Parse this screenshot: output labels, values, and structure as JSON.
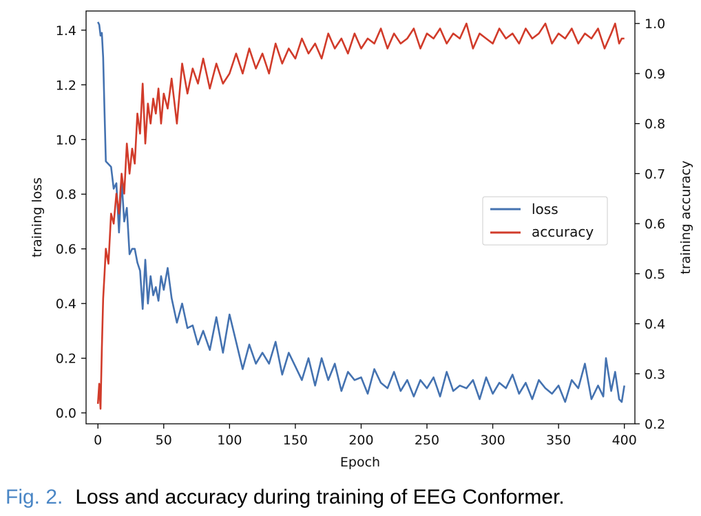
{
  "chart_data": {
    "type": "line",
    "xlabel": "Epoch",
    "ylabel_left": "training loss",
    "ylabel_right": "training accuracy",
    "xlim": [
      -9,
      408
    ],
    "ylim_left": [
      -0.04,
      1.47
    ],
    "ylim_right": [
      0.2,
      1.025
    ],
    "xticks": [
      0,
      50,
      100,
      150,
      200,
      250,
      300,
      350,
      400
    ],
    "yticks_left": [
      0.0,
      0.2,
      0.4,
      0.6,
      0.8,
      1.0,
      1.2,
      1.4
    ],
    "yticks_right": [
      0.2,
      0.3,
      0.4,
      0.5,
      0.6,
      0.7,
      0.8,
      0.9,
      1.0
    ],
    "legend_position": "center-right",
    "series": [
      {
        "name": "loss",
        "axis": "left",
        "color": "#4472b0",
        "x": [
          0,
          1,
          2,
          3,
          4,
          5,
          6,
          8,
          10,
          12,
          14,
          16,
          18,
          20,
          22,
          24,
          26,
          28,
          30,
          32,
          34,
          36,
          38,
          40,
          42,
          44,
          46,
          48,
          50,
          53,
          56,
          60,
          64,
          68,
          72,
          76,
          80,
          85,
          90,
          95,
          100,
          105,
          110,
          115,
          120,
          125,
          130,
          135,
          140,
          145,
          150,
          155,
          160,
          165,
          170,
          175,
          180,
          185,
          190,
          195,
          200,
          205,
          210,
          215,
          220,
          225,
          230,
          235,
          240,
          245,
          250,
          255,
          260,
          265,
          270,
          275,
          280,
          285,
          290,
          295,
          300,
          305,
          310,
          315,
          320,
          325,
          330,
          335,
          340,
          345,
          350,
          355,
          360,
          365,
          370,
          375,
          380,
          384,
          386,
          388,
          390,
          393,
          396,
          398,
          400
        ],
        "values": [
          1.43,
          1.42,
          1.38,
          1.39,
          1.3,
          1.1,
          0.92,
          0.91,
          0.9,
          0.82,
          0.84,
          0.66,
          0.85,
          0.7,
          0.75,
          0.58,
          0.6,
          0.6,
          0.55,
          0.52,
          0.38,
          0.56,
          0.4,
          0.5,
          0.43,
          0.46,
          0.41,
          0.5,
          0.45,
          0.53,
          0.42,
          0.33,
          0.4,
          0.31,
          0.32,
          0.25,
          0.3,
          0.23,
          0.35,
          0.22,
          0.36,
          0.26,
          0.16,
          0.25,
          0.18,
          0.22,
          0.18,
          0.26,
          0.14,
          0.22,
          0.17,
          0.12,
          0.2,
          0.1,
          0.2,
          0.12,
          0.18,
          0.08,
          0.15,
          0.12,
          0.13,
          0.07,
          0.16,
          0.11,
          0.09,
          0.15,
          0.08,
          0.12,
          0.06,
          0.12,
          0.09,
          0.13,
          0.06,
          0.15,
          0.08,
          0.1,
          0.09,
          0.12,
          0.05,
          0.13,
          0.07,
          0.11,
          0.09,
          0.14,
          0.07,
          0.11,
          0.05,
          0.12,
          0.09,
          0.07,
          0.1,
          0.04,
          0.12,
          0.09,
          0.18,
          0.05,
          0.1,
          0.06,
          0.2,
          0.14,
          0.08,
          0.15,
          0.05,
          0.04,
          0.1
        ]
      },
      {
        "name": "accuracy",
        "axis": "right",
        "color": "#d13b2a",
        "x": [
          0,
          1,
          2,
          3,
          4,
          5,
          6,
          8,
          10,
          12,
          14,
          16,
          18,
          20,
          22,
          24,
          26,
          28,
          30,
          32,
          34,
          36,
          38,
          40,
          42,
          44,
          46,
          48,
          50,
          53,
          56,
          60,
          64,
          68,
          72,
          76,
          80,
          85,
          90,
          95,
          100,
          105,
          110,
          115,
          120,
          125,
          130,
          135,
          140,
          145,
          150,
          155,
          160,
          165,
          170,
          175,
          180,
          185,
          190,
          195,
          200,
          205,
          210,
          215,
          220,
          225,
          230,
          235,
          240,
          245,
          250,
          255,
          260,
          265,
          270,
          275,
          280,
          285,
          290,
          295,
          300,
          305,
          310,
          315,
          320,
          325,
          330,
          335,
          340,
          345,
          350,
          355,
          360,
          365,
          370,
          375,
          380,
          385,
          390,
          393,
          396,
          398,
          400
        ],
        "values": [
          0.24,
          0.28,
          0.23,
          0.35,
          0.45,
          0.5,
          0.55,
          0.52,
          0.62,
          0.6,
          0.66,
          0.62,
          0.7,
          0.66,
          0.76,
          0.7,
          0.75,
          0.72,
          0.82,
          0.78,
          0.88,
          0.76,
          0.84,
          0.8,
          0.85,
          0.82,
          0.87,
          0.8,
          0.86,
          0.83,
          0.89,
          0.8,
          0.92,
          0.86,
          0.91,
          0.88,
          0.93,
          0.87,
          0.92,
          0.88,
          0.9,
          0.94,
          0.9,
          0.95,
          0.91,
          0.94,
          0.9,
          0.96,
          0.92,
          0.95,
          0.93,
          0.97,
          0.94,
          0.96,
          0.93,
          0.98,
          0.95,
          0.97,
          0.94,
          0.98,
          0.95,
          0.97,
          0.96,
          0.99,
          0.95,
          0.98,
          0.96,
          0.97,
          0.99,
          0.95,
          0.98,
          0.97,
          0.99,
          0.96,
          0.98,
          0.97,
          1.0,
          0.95,
          0.98,
          0.97,
          0.96,
          0.99,
          0.97,
          0.98,
          0.96,
          0.99,
          0.97,
          0.98,
          1.0,
          0.96,
          0.98,
          0.97,
          0.99,
          0.96,
          0.98,
          0.97,
          0.99,
          0.95,
          0.98,
          1.0,
          0.96,
          0.97,
          0.97
        ]
      }
    ]
  },
  "caption": {
    "number": "Fig. 2.",
    "text": "Loss and accuracy during training of EEG Conformer."
  }
}
